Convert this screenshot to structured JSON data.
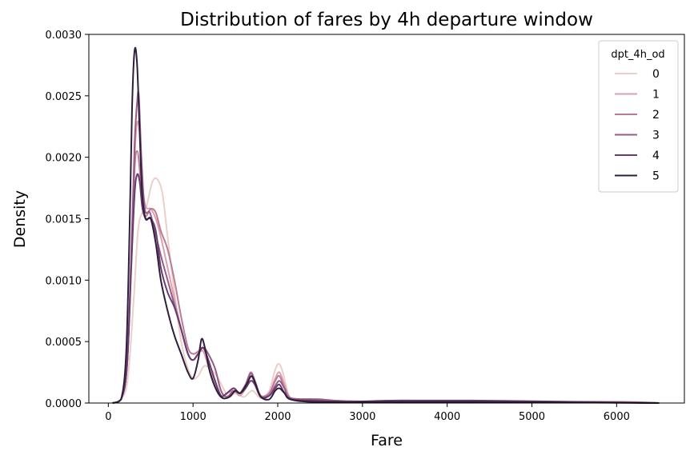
{
  "chart_data": {
    "type": "line",
    "title": "Distribution of fares by 4h departure window",
    "xlabel": "Fare",
    "ylabel": "Density",
    "xlim": [
      -230,
      6800
    ],
    "ylim": [
      0,
      0.003
    ],
    "x_ticks": [
      0,
      1000,
      2000,
      3000,
      4000,
      5000,
      6000
    ],
    "x_tick_labels": [
      "0",
      "1000",
      "2000",
      "3000",
      "4000",
      "5000",
      "6000"
    ],
    "y_ticks": [
      0,
      0.0005,
      0.001,
      0.0015,
      0.002,
      0.0025,
      0.003
    ],
    "y_tick_labels": [
      "0.0000",
      "0.0005",
      "0.0010",
      "0.0015",
      "0.0020",
      "0.0025",
      "0.0030"
    ],
    "grid": false,
    "legend": {
      "title": "dpt_4h_od",
      "placement": "top-right"
    },
    "series": [
      {
        "name": "0",
        "color": "#ebcfc8",
        "points": [
          [
            50,
            0
          ],
          [
            150,
            3e-05
          ],
          [
            230,
            0.0002
          ],
          [
            300,
            0.00085
          ],
          [
            350,
            0.0014
          ],
          [
            400,
            0.00155
          ],
          [
            450,
            0.0016
          ],
          [
            520,
            0.0018
          ],
          [
            580,
            0.00182
          ],
          [
            640,
            0.0017
          ],
          [
            700,
            0.00135
          ],
          [
            780,
            0.0009
          ],
          [
            860,
            0.0005
          ],
          [
            940,
            0.00028
          ],
          [
            1000,
            0.0002
          ],
          [
            1060,
            0.00022
          ],
          [
            1130,
            0.0003
          ],
          [
            1200,
            0.00028
          ],
          [
            1280,
            0.00022
          ],
          [
            1350,
            0.00013
          ],
          [
            1420,
            5e-05
          ],
          [
            1500,
            8e-05
          ],
          [
            1600,
            5e-05
          ],
          [
            1700,
            0.0001
          ],
          [
            1800,
            4e-05
          ],
          [
            1900,
            0.0001
          ],
          [
            1960,
            0.00025
          ],
          [
            2010,
            0.00032
          ],
          [
            2060,
            0.00025
          ],
          [
            2120,
            8e-05
          ],
          [
            2200,
            2e-05
          ],
          [
            2500,
            1e-05
          ],
          [
            3000,
            1e-05
          ],
          [
            4000,
            5e-06
          ],
          [
            5000,
            1e-05
          ],
          [
            6500,
            0
          ]
        ]
      },
      {
        "name": "1",
        "color": "#daa2ac",
        "points": [
          [
            50,
            0
          ],
          [
            150,
            3e-05
          ],
          [
            220,
            0.0003
          ],
          [
            270,
            0.0012
          ],
          [
            310,
            0.002
          ],
          [
            340,
            0.00228
          ],
          [
            370,
            0.0022
          ],
          [
            400,
            0.0018
          ],
          [
            440,
            0.0016
          ],
          [
            500,
            0.00158
          ],
          [
            560,
            0.0015
          ],
          [
            620,
            0.00135
          ],
          [
            700,
            0.0011
          ],
          [
            780,
            0.00085
          ],
          [
            860,
            0.0006
          ],
          [
            940,
            0.0004
          ],
          [
            1000,
            0.00035
          ],
          [
            1060,
            0.0004
          ],
          [
            1120,
            0.00042
          ],
          [
            1180,
            0.0003
          ],
          [
            1260,
            0.00015
          ],
          [
            1330,
            5e-05
          ],
          [
            1400,
            8e-05
          ],
          [
            1480,
            0.0001
          ],
          [
            1550,
            6e-05
          ],
          [
            1620,
            0.00012
          ],
          [
            1680,
            0.00022
          ],
          [
            1730,
            0.00015
          ],
          [
            1800,
            5e-05
          ],
          [
            1900,
            8e-05
          ],
          [
            1970,
            0.0002
          ],
          [
            2020,
            0.00025
          ],
          [
            2080,
            0.00015
          ],
          [
            2150,
            4e-05
          ],
          [
            2300,
            2e-05
          ],
          [
            2600,
            2e-05
          ],
          [
            3200,
            1e-05
          ],
          [
            4300,
            1e-05
          ],
          [
            5500,
            1e-05
          ],
          [
            6500,
            0
          ]
        ]
      },
      {
        "name": "2",
        "color": "#bc7a95",
        "points": [
          [
            50,
            0
          ],
          [
            150,
            3e-05
          ],
          [
            220,
            0.0003
          ],
          [
            270,
            0.0011
          ],
          [
            310,
            0.0019
          ],
          [
            340,
            0.00205
          ],
          [
            370,
            0.0019
          ],
          [
            400,
            0.0016
          ],
          [
            440,
            0.00152
          ],
          [
            500,
            0.00158
          ],
          [
            560,
            0.00155
          ],
          [
            620,
            0.0014
          ],
          [
            700,
            0.00125
          ],
          [
            780,
            0.001
          ],
          [
            860,
            0.0007
          ],
          [
            940,
            0.00045
          ],
          [
            1000,
            0.0004
          ],
          [
            1060,
            0.00042
          ],
          [
            1120,
            0.00045
          ],
          [
            1180,
            0.00035
          ],
          [
            1260,
            0.00018
          ],
          [
            1330,
            6e-05
          ],
          [
            1400,
            8e-05
          ],
          [
            1480,
            0.00012
          ],
          [
            1550,
            8e-05
          ],
          [
            1620,
            0.00015
          ],
          [
            1680,
            0.00025
          ],
          [
            1730,
            0.00018
          ],
          [
            1800,
            6e-05
          ],
          [
            1900,
            8e-05
          ],
          [
            1970,
            0.00018
          ],
          [
            2020,
            0.00022
          ],
          [
            2080,
            0.00012
          ],
          [
            2150,
            4e-05
          ],
          [
            2300,
            2e-05
          ],
          [
            2600,
            2e-05
          ],
          [
            3300,
            1e-05
          ],
          [
            4500,
            1e-05
          ],
          [
            6000,
            1e-05
          ],
          [
            6500,
            0
          ]
        ]
      },
      {
        "name": "3",
        "color": "#985a88",
        "points": [
          [
            50,
            0
          ],
          [
            150,
            3e-05
          ],
          [
            220,
            0.0003
          ],
          [
            270,
            0.0012
          ],
          [
            310,
            0.0021
          ],
          [
            340,
            0.00245
          ],
          [
            360,
            0.0025
          ],
          [
            390,
            0.002
          ],
          [
            430,
            0.00158
          ],
          [
            490,
            0.00155
          ],
          [
            550,
            0.0014
          ],
          [
            620,
            0.0012
          ],
          [
            700,
            0.001
          ],
          [
            780,
            0.0008
          ],
          [
            860,
            0.0006
          ],
          [
            940,
            0.0004
          ],
          [
            1000,
            0.00035
          ],
          [
            1060,
            0.0004
          ],
          [
            1120,
            0.00045
          ],
          [
            1180,
            0.0004
          ],
          [
            1260,
            0.00028
          ],
          [
            1330,
            0.0001
          ],
          [
            1400,
            5e-05
          ],
          [
            1480,
            0.0001
          ],
          [
            1550,
            8e-05
          ],
          [
            1620,
            0.00015
          ],
          [
            1680,
            0.00024
          ],
          [
            1730,
            0.00018
          ],
          [
            1800,
            5e-05
          ],
          [
            1900,
            6e-05
          ],
          [
            1970,
            0.00014
          ],
          [
            2020,
            0.00018
          ],
          [
            2080,
            0.00012
          ],
          [
            2150,
            4e-05
          ],
          [
            2500,
            3e-05
          ],
          [
            2900,
            1e-05
          ],
          [
            3500,
            2e-05
          ],
          [
            4300,
            1e-05
          ],
          [
            5500,
            1e-05
          ],
          [
            6500,
            0
          ]
        ]
      },
      {
        "name": "4",
        "color": "#663d6e",
        "points": [
          [
            50,
            0
          ],
          [
            150,
            3e-05
          ],
          [
            220,
            0.0003
          ],
          [
            270,
            0.0011
          ],
          [
            310,
            0.0017
          ],
          [
            340,
            0.00186
          ],
          [
            370,
            0.0018
          ],
          [
            400,
            0.0016
          ],
          [
            440,
            0.0015
          ],
          [
            500,
            0.0015
          ],
          [
            560,
            0.0014
          ],
          [
            620,
            0.0011
          ],
          [
            700,
            0.0009
          ],
          [
            780,
            0.00078
          ],
          [
            860,
            0.0006
          ],
          [
            940,
            0.0004
          ],
          [
            1000,
            0.00035
          ],
          [
            1060,
            0.0004
          ],
          [
            1120,
            0.00045
          ],
          [
            1180,
            0.00035
          ],
          [
            1260,
            0.00018
          ],
          [
            1330,
            6e-05
          ],
          [
            1400,
            8e-05
          ],
          [
            1480,
            0.00012
          ],
          [
            1550,
            8e-05
          ],
          [
            1620,
            0.00012
          ],
          [
            1680,
            0.00018
          ],
          [
            1730,
            0.00015
          ],
          [
            1800,
            5e-05
          ],
          [
            1900,
            6e-05
          ],
          [
            1970,
            0.00012
          ],
          [
            2020,
            0.00015
          ],
          [
            2080,
            8e-05
          ],
          [
            2150,
            3e-05
          ],
          [
            2400,
            2e-05
          ],
          [
            2800,
            1e-05
          ],
          [
            3400,
            2e-05
          ],
          [
            4300,
            2e-05
          ],
          [
            5500,
            1e-05
          ],
          [
            6500,
            0
          ]
        ]
      },
      {
        "name": "5",
        "color": "#2e1e3c",
        "points": [
          [
            50,
            0
          ],
          [
            150,
            3e-05
          ],
          [
            210,
            0.0004
          ],
          [
            250,
            0.0014
          ],
          [
            280,
            0.0024
          ],
          [
            310,
            0.00287
          ],
          [
            340,
            0.00275
          ],
          [
            370,
            0.0022
          ],
          [
            400,
            0.0017
          ],
          [
            440,
            0.0015
          ],
          [
            500,
            0.0015
          ],
          [
            560,
            0.0013
          ],
          [
            620,
            0.001
          ],
          [
            700,
            0.00075
          ],
          [
            780,
            0.00055
          ],
          [
            860,
            0.0004
          ],
          [
            940,
            0.00025
          ],
          [
            1000,
            0.0002
          ],
          [
            1060,
            0.00035
          ],
          [
            1100,
            0.00052
          ],
          [
            1140,
            0.00045
          ],
          [
            1200,
            0.00025
          ],
          [
            1280,
            0.0001
          ],
          [
            1350,
            4e-05
          ],
          [
            1430,
            5e-05
          ],
          [
            1500,
            0.0001
          ],
          [
            1560,
            8e-05
          ],
          [
            1630,
            0.00015
          ],
          [
            1690,
            0.00022
          ],
          [
            1740,
            0.00015
          ],
          [
            1800,
            5e-05
          ],
          [
            1900,
            3e-05
          ],
          [
            1970,
            0.0001
          ],
          [
            2020,
            0.00012
          ],
          [
            2080,
            8e-05
          ],
          [
            2150,
            3e-05
          ],
          [
            2400,
            1e-05
          ],
          [
            3000,
            1e-05
          ],
          [
            4200,
            1e-05
          ],
          [
            6500,
            0
          ]
        ]
      }
    ]
  }
}
